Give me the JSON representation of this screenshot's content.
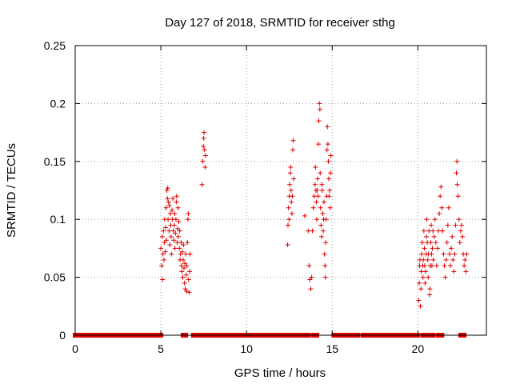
{
  "chart_data": {
    "type": "scatter",
    "title": "Day 127 of 2018, SRMTID for receiver sthg",
    "xlabel": "GPS time / hours",
    "ylabel": "SRMTID / TECUs",
    "xlim": [
      0,
      24
    ],
    "ylim": [
      0,
      0.25
    ],
    "xticks": [
      0,
      5,
      10,
      15,
      20
    ],
    "xtick_labels": [
      "0",
      "5",
      "10",
      "15",
      "20"
    ],
    "yticks": [
      0,
      0.05,
      0.1,
      0.15,
      0.2,
      0.25
    ],
    "ytick_labels": [
      "0",
      "0.05",
      "0.1",
      "0.15",
      "0.2",
      "0.25"
    ],
    "grid": true,
    "marker": "+",
    "color": "#dd0000",
    "zero_segments": [
      [
        0.0,
        5.0
      ],
      [
        6.3,
        6.45
      ],
      [
        6.9,
        7.1
      ],
      [
        7.3,
        12.6
      ],
      [
        12.8,
        13.6
      ],
      [
        13.9,
        14.1
      ],
      [
        15.1,
        16.5
      ],
      [
        16.8,
        20.0
      ],
      [
        20.3,
        20.9
      ],
      [
        21.2,
        21.4
      ],
      [
        22.5,
        22.7
      ]
    ],
    "series": [
      {
        "name": "SRMTID",
        "points": [
          [
            5.0,
            0.075
          ],
          [
            5.05,
            0.06
          ],
          [
            5.08,
            0.085
          ],
          [
            5.1,
            0.048
          ],
          [
            5.12,
            0.07
          ],
          [
            5.15,
            0.09
          ],
          [
            5.18,
            0.065
          ],
          [
            5.2,
            0.08
          ],
          [
            5.22,
            0.1
          ],
          [
            5.25,
            0.072
          ],
          [
            5.28,
            0.093
          ],
          [
            5.3,
            0.11
          ],
          [
            5.32,
            0.082
          ],
          [
            5.35,
            0.125
          ],
          [
            5.38,
            0.118
          ],
          [
            5.4,
            0.127
          ],
          [
            5.42,
            0.1
          ],
          [
            5.45,
            0.115
          ],
          [
            5.48,
            0.09
          ],
          [
            5.5,
            0.112
          ],
          [
            5.52,
            0.078
          ],
          [
            5.55,
            0.105
          ],
          [
            5.58,
            0.095
          ],
          [
            5.6,
            0.085
          ],
          [
            5.62,
            0.07
          ],
          [
            5.65,
            0.108
          ],
          [
            5.68,
            0.1
          ],
          [
            5.7,
            0.118
          ],
          [
            5.72,
            0.09
          ],
          [
            5.75,
            0.082
          ],
          [
            5.78,
            0.095
          ],
          [
            5.8,
            0.105
          ],
          [
            5.82,
            0.075
          ],
          [
            5.85,
            0.088
          ],
          [
            5.88,
            0.1
          ],
          [
            5.9,
            0.115
          ],
          [
            5.92,
            0.12
          ],
          [
            5.95,
            0.08
          ],
          [
            5.98,
            0.092
          ],
          [
            6.0,
            0.11
          ],
          [
            6.02,
            0.085
          ],
          [
            6.05,
            0.098
          ],
          [
            6.08,
            0.075
          ],
          [
            6.1,
            0.09
          ],
          [
            6.12,
            0.065
          ],
          [
            6.15,
            0.07
          ],
          [
            6.18,
            0.08
          ],
          [
            6.2,
            0.06
          ],
          [
            6.22,
            0.055
          ],
          [
            6.25,
            0.072
          ],
          [
            6.28,
            0.05
          ],
          [
            6.3,
            0.065
          ],
          [
            6.32,
            0.078
          ],
          [
            6.35,
            0.058
          ],
          [
            6.38,
            0.045
          ],
          [
            6.4,
            0.062
          ],
          [
            6.42,
            0.04
          ],
          [
            6.45,
            0.07
          ],
          [
            6.48,
            0.052
          ],
          [
            6.5,
            0.038
          ],
          [
            6.52,
            0.06
          ],
          [
            6.55,
            0.08
          ],
          [
            6.58,
            0.1
          ],
          [
            6.6,
            0.105
          ],
          [
            6.62,
            0.048
          ],
          [
            6.65,
            0.037
          ],
          [
            6.68,
            0.055
          ],
          [
            6.7,
            0.07
          ],
          [
            7.4,
            0.13
          ],
          [
            7.45,
            0.15
          ],
          [
            7.48,
            0.163
          ],
          [
            7.5,
            0.17
          ],
          [
            7.52,
            0.175
          ],
          [
            7.55,
            0.16
          ],
          [
            7.58,
            0.145
          ],
          [
            7.6,
            0.155
          ],
          [
            12.4,
            0.078
          ],
          [
            12.42,
            0.095
          ],
          [
            12.45,
            0.11
          ],
          [
            12.48,
            0.1
          ],
          [
            12.5,
            0.12
          ],
          [
            12.52,
            0.13
          ],
          [
            12.55,
            0.14
          ],
          [
            12.58,
            0.145
          ],
          [
            12.6,
            0.125
          ],
          [
            12.62,
            0.115
          ],
          [
            12.65,
            0.105
          ],
          [
            12.68,
            0.12
          ],
          [
            12.7,
            0.16
          ],
          [
            12.72,
            0.168
          ],
          [
            12.75,
            0.135
          ],
          [
            13.4,
            0.103
          ],
          [
            13.6,
            0.09
          ],
          [
            13.65,
            0.06
          ],
          [
            13.7,
            0.048
          ],
          [
            13.75,
            0.04
          ],
          [
            13.8,
            0.05
          ],
          [
            13.85,
            0.09
          ],
          [
            13.9,
            0.11
          ],
          [
            13.95,
            0.12
          ],
          [
            14.0,
            0.13
          ],
          [
            14.02,
            0.145
          ],
          [
            14.05,
            0.125
          ],
          [
            14.08,
            0.115
          ],
          [
            14.1,
            0.1
          ],
          [
            14.12,
            0.125
          ],
          [
            14.15,
            0.135
          ],
          [
            14.18,
            0.12
          ],
          [
            14.2,
            0.165
          ],
          [
            14.22,
            0.185
          ],
          [
            14.25,
            0.2
          ],
          [
            14.28,
            0.195
          ],
          [
            14.3,
            0.14
          ],
          [
            14.32,
            0.11
          ],
          [
            14.35,
            0.095
          ],
          [
            14.38,
            0.085
          ],
          [
            14.4,
            0.13
          ],
          [
            14.42,
            0.125
          ],
          [
            14.45,
            0.105
          ],
          [
            14.48,
            0.09
          ],
          [
            14.5,
            0.1
          ],
          [
            14.52,
            0.115
          ],
          [
            14.55,
            0.07
          ],
          [
            14.58,
            0.06
          ],
          [
            14.6,
            0.05
          ],
          [
            14.62,
            0.08
          ],
          [
            14.65,
            0.1
          ],
          [
            14.68,
            0.12
          ],
          [
            14.7,
            0.16
          ],
          [
            14.72,
            0.18
          ],
          [
            14.75,
            0.165
          ],
          [
            14.78,
            0.15
          ],
          [
            14.8,
            0.135
          ],
          [
            14.82,
            0.12
          ],
          [
            14.85,
            0.125
          ],
          [
            14.88,
            0.11
          ],
          [
            14.9,
            0.14
          ],
          [
            14.92,
            0.155
          ],
          [
            20.05,
            0.03
          ],
          [
            20.08,
            0.045
          ],
          [
            20.1,
            0.06
          ],
          [
            20.12,
            0.065
          ],
          [
            20.15,
            0.025
          ],
          [
            20.18,
            0.04
          ],
          [
            20.2,
            0.055
          ],
          [
            20.22,
            0.07
          ],
          [
            20.25,
            0.08
          ],
          [
            20.28,
            0.06
          ],
          [
            20.3,
            0.05
          ],
          [
            20.32,
            0.065
          ],
          [
            20.35,
            0.09
          ],
          [
            20.38,
            0.075
          ],
          [
            20.4,
            0.06
          ],
          [
            20.42,
            0.045
          ],
          [
            20.45,
            0.055
          ],
          [
            20.48,
            0.07
          ],
          [
            20.5,
            0.085
          ],
          [
            20.52,
            0.1
          ],
          [
            20.55,
            0.08
          ],
          [
            20.58,
            0.065
          ],
          [
            20.6,
            0.05
          ],
          [
            20.62,
            0.07
          ],
          [
            20.65,
            0.09
          ],
          [
            20.68,
            0.035
          ],
          [
            20.7,
            0.04
          ],
          [
            20.72,
            0.06
          ],
          [
            20.75,
            0.08
          ],
          [
            20.78,
            0.095
          ],
          [
            20.8,
            0.07
          ],
          [
            20.82,
            0.06
          ],
          [
            20.85,
            0.075
          ],
          [
            20.88,
            0.09
          ],
          [
            20.9,
            0.065
          ],
          [
            20.95,
            0.085
          ],
          [
            21.0,
            0.1
          ],
          [
            21.05,
            0.08
          ],
          [
            21.1,
            0.06
          ],
          [
            21.15,
            0.075
          ],
          [
            21.2,
            0.09
          ],
          [
            21.25,
            0.105
          ],
          [
            21.3,
            0.12
          ],
          [
            21.35,
            0.128
          ],
          [
            21.4,
            0.11
          ],
          [
            21.45,
            0.09
          ],
          [
            21.5,
            0.07
          ],
          [
            21.55,
            0.06
          ],
          [
            21.6,
            0.05
          ],
          [
            21.65,
            0.065
          ],
          [
            21.7,
            0.08
          ],
          [
            21.75,
            0.095
          ],
          [
            21.8,
            0.11
          ],
          [
            21.85,
            0.07
          ],
          [
            21.9,
            0.06
          ],
          [
            21.95,
            0.075
          ],
          [
            22.0,
            0.085
          ],
          [
            22.05,
            0.065
          ],
          [
            22.1,
            0.055
          ],
          [
            22.15,
            0.07
          ],
          [
            22.2,
            0.095
          ],
          [
            22.25,
            0.14
          ],
          [
            22.28,
            0.15
          ],
          [
            22.3,
            0.13
          ],
          [
            22.35,
            0.12
          ],
          [
            22.4,
            0.1
          ],
          [
            22.45,
            0.08
          ],
          [
            22.5,
            0.09
          ],
          [
            22.55,
            0.095
          ],
          [
            22.6,
            0.085
          ],
          [
            22.65,
            0.07
          ],
          [
            22.7,
            0.06
          ],
          [
            22.75,
            0.065
          ],
          [
            22.8,
            0.055
          ],
          [
            22.85,
            0.07
          ]
        ]
      }
    ]
  }
}
